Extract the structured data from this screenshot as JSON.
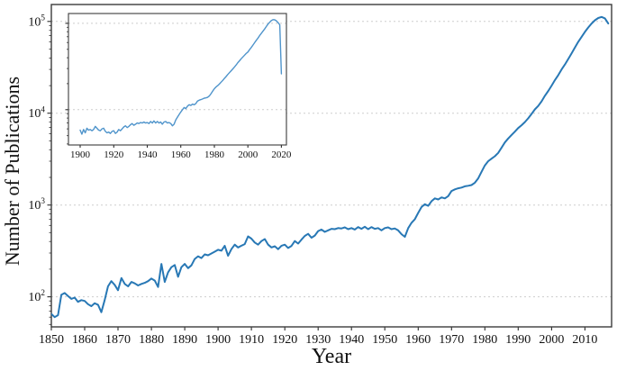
{
  "figure": {
    "background": "#ffffff",
    "grid_color": "#cdcdcd",
    "spine_color": "#3b3b3b",
    "tick_color": "#2b2b2b",
    "text_color": "#111111"
  },
  "chart_data": [
    {
      "id": "main",
      "type": "line",
      "title": "",
      "xlabel": "Year",
      "ylabel": "Number of Publications",
      "yscale": "log",
      "xlim": [
        1850,
        2018
      ],
      "ylim": [
        47,
        153000
      ],
      "grid": "horizontal-dashed",
      "legend": "none",
      "color": "#2878b5",
      "x_ticks": [
        1850,
        1860,
        1870,
        1880,
        1890,
        1900,
        1910,
        1920,
        1930,
        1940,
        1950,
        1960,
        1970,
        1980,
        1990,
        2000,
        2010
      ],
      "y_gridlines": [
        100,
        1000,
        10000,
        100000
      ],
      "y_ticks": [
        {
          "value": 100,
          "base": "10",
          "exp": "2"
        },
        {
          "value": 1000,
          "base": "10",
          "exp": "3"
        },
        {
          "value": 10000,
          "base": "10",
          "exp": "4"
        },
        {
          "value": 100000,
          "base": "10",
          "exp": "5"
        }
      ],
      "series": [
        {
          "name": "publications-per-year",
          "x_start": 1850,
          "values": [
            65,
            60,
            63,
            105,
            110,
            102,
            95,
            98,
            88,
            92,
            90,
            83,
            79,
            85,
            82,
            68,
            92,
            130,
            148,
            135,
            118,
            160,
            138,
            130,
            145,
            140,
            133,
            138,
            142,
            148,
            158,
            150,
            128,
            228,
            145,
            185,
            210,
            222,
            165,
            210,
            228,
            205,
            220,
            258,
            276,
            264,
            290,
            283,
            296,
            310,
            325,
            318,
            360,
            280,
            330,
            370,
            345,
            360,
            375,
            455,
            430,
            390,
            370,
            405,
            425,
            370,
            345,
            355,
            330,
            360,
            370,
            340,
            358,
            405,
            380,
            420,
            460,
            485,
            440,
            465,
            520,
            540,
            510,
            530,
            550,
            545,
            560,
            555,
            570,
            545,
            560,
            540,
            575,
            550,
            580,
            545,
            575,
            550,
            560,
            530,
            560,
            570,
            545,
            555,
            530,
            480,
            450,
            560,
            640,
            700,
            820,
            950,
            1020,
            980,
            1100,
            1180,
            1150,
            1210,
            1180,
            1250,
            1420,
            1480,
            1520,
            1550,
            1600,
            1620,
            1650,
            1750,
            1950,
            2300,
            2700,
            3000,
            3200,
            3400,
            3700,
            4200,
            4800,
            5300,
            5800,
            6300,
            6900,
            7400,
            8000,
            8800,
            9800,
            11000,
            12000,
            13500,
            15500,
            17500,
            20000,
            23000,
            26000,
            30000,
            34000,
            39000,
            45000,
            52000,
            60000,
            68000,
            77000,
            86000,
            95000,
            103000,
            109000,
            112000,
            108000,
            95000
          ]
        }
      ]
    },
    {
      "id": "inset",
      "type": "line",
      "title": "",
      "xlabel": "",
      "ylabel": "",
      "yscale": "log",
      "xlim": [
        1893,
        2023
      ],
      "ylim": [
        3900,
        130000
      ],
      "grid": "horizontal-dashed",
      "legend": "none",
      "color": "#4f94cb",
      "x_ticks": [
        1900,
        1920,
        1940,
        1960,
        1980,
        2000,
        2020
      ],
      "y_gridlines": [
        10000,
        100000
      ],
      "y_ticks": [
        {
          "value": 10000
        },
        {
          "value": 100000
        }
      ],
      "series": [
        {
          "name": "publications-per-year-inset",
          "x_start": 1900,
          "values": [
            5800,
            5200,
            5900,
            5400,
            6100,
            5800,
            5900,
            5700,
            5900,
            6400,
            6100,
            5800,
            5700,
            6000,
            6100,
            5600,
            5400,
            5500,
            5300,
            5600,
            5700,
            5300,
            5500,
            5900,
            5700,
            6000,
            6300,
            6500,
            6200,
            6400,
            6700,
            6900,
            6600,
            6800,
            7000,
            6900,
            7100,
            7000,
            7200,
            7000,
            7100,
            6900,
            7300,
            7000,
            7400,
            7000,
            7300,
            7000,
            7200,
            6800,
            7200,
            7300,
            7000,
            7100,
            6900,
            6500,
            6800,
            7600,
            8200,
            8800,
            9400,
            10000,
            10600,
            10300,
            11000,
            11400,
            11200,
            11600,
            11400,
            11800,
            12600,
            12900,
            13100,
            13300,
            13600,
            13700,
            13900,
            14400,
            15300,
            16400,
            17500,
            18300,
            19000,
            19800,
            20800,
            21800,
            23000,
            24200,
            25500,
            26800,
            28200,
            29600,
            31200,
            33000,
            35000,
            36800,
            38800,
            40800,
            42800,
            44800,
            46500,
            49500,
            52500,
            56000,
            59500,
            63500,
            67500,
            72000,
            76500,
            81000,
            86000,
            92000,
            98000,
            103000,
            107500,
            110500,
            110000,
            107000,
            102000,
            96000,
            26000
          ]
        }
      ]
    }
  ]
}
